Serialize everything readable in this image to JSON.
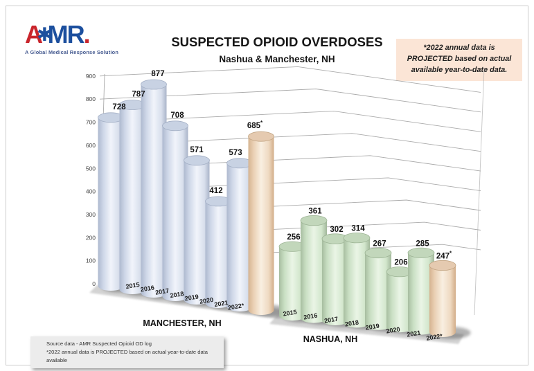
{
  "logo": {
    "letter_a": "A",
    "star": "✱",
    "letters_mr": "MR",
    "dot": ".",
    "tagline": "A Global Medical Response Solution"
  },
  "note_box": {
    "lines": [
      "*2022 annual data is",
      "PROJECTED based on actual",
      "available year-to-date data."
    ]
  },
  "source_box": {
    "lines": [
      "Source data - AMR Suspected Opioid OD log",
      "*2022 annual data is PROJECTED based on actual year-to-date data available"
    ]
  },
  "colors": {
    "manchester_fill": "#dfe6f2",
    "nashua_fill": "#ddeeda",
    "projected_fill": "#f5e2d0",
    "grid": "#ababab",
    "note_bg": "#fbe5d6",
    "source_bg": "#ececec",
    "logo_red": "#c9252c",
    "logo_blue": "#1c4f9e"
  },
  "chart_data": {
    "type": "bar",
    "style": "3d-cylinder",
    "title": "SUSPECTED OPIOID OVERDOSES",
    "subtitle": "Nashua & Manchester, NH",
    "categories": [
      "2015",
      "2016",
      "2017",
      "2018",
      "2019",
      "2020",
      "2021",
      "2022*"
    ],
    "series": [
      {
        "name": "MANCHESTER, NH",
        "values": [
          728,
          787,
          877,
          708,
          571,
          412,
          573,
          685
        ],
        "value_labels": [
          "728",
          "787",
          "877",
          "708",
          "571",
          "412",
          "573",
          "685*"
        ],
        "projected_last": true
      },
      {
        "name": "NASHUA, NH",
        "values": [
          256,
          361,
          302,
          314,
          267,
          206,
          285,
          247
        ],
        "value_labels": [
          "256",
          "361",
          "302",
          "314",
          "267",
          "206",
          "285",
          "247*"
        ],
        "projected_last": true
      }
    ],
    "ylim": [
      0,
      900
    ],
    "yticks": [
      0,
      100,
      200,
      300,
      400,
      500,
      600,
      700,
      800,
      900
    ],
    "grid": true,
    "legend": "none"
  }
}
